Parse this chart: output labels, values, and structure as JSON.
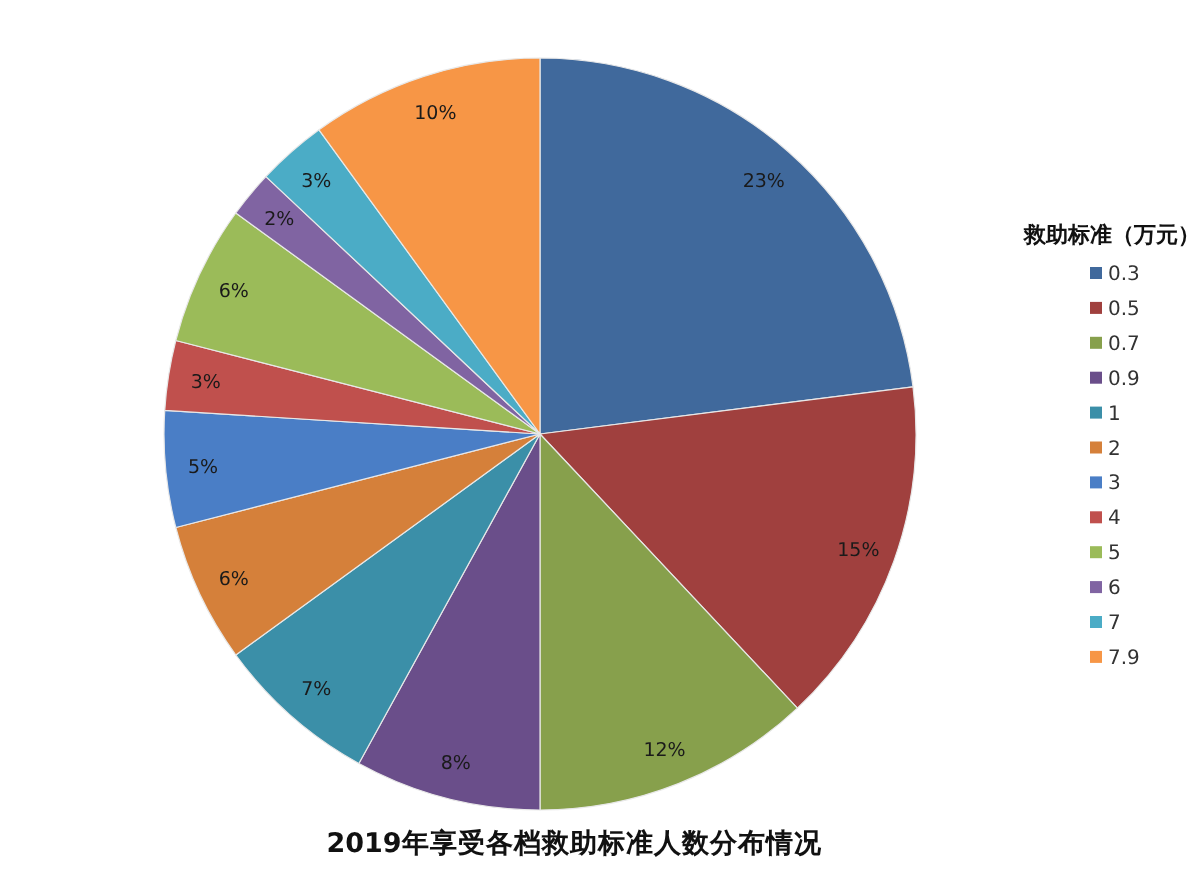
{
  "chart_data": {
    "type": "pie",
    "title": "2019年享受各档救助标准人数分布情况",
    "legend_title": "救助标准（万元）",
    "legend": "right",
    "categories": [
      "0.3",
      "0.5",
      "0.7",
      "0.9",
      "1",
      "2",
      "3",
      "4",
      "5",
      "6",
      "7",
      "7.9"
    ],
    "values": [
      23,
      15,
      12,
      8,
      7,
      6,
      5,
      3,
      6,
      2,
      3,
      10
    ],
    "colors": [
      "#40699c",
      "#a0403e",
      "#87a04c",
      "#6a4e8a",
      "#3b8fa8",
      "#d5803a",
      "#4a7ec6",
      "#c0504d",
      "#9bbb59",
      "#8064a2",
      "#4bacc6",
      "#f79646"
    ],
    "value_labels": [
      "23%",
      "15%",
      "12%",
      "8%",
      "7%",
      "6%",
      "5%",
      "3%",
      "6%",
      "2%",
      "3%",
      "10%"
    ]
  }
}
